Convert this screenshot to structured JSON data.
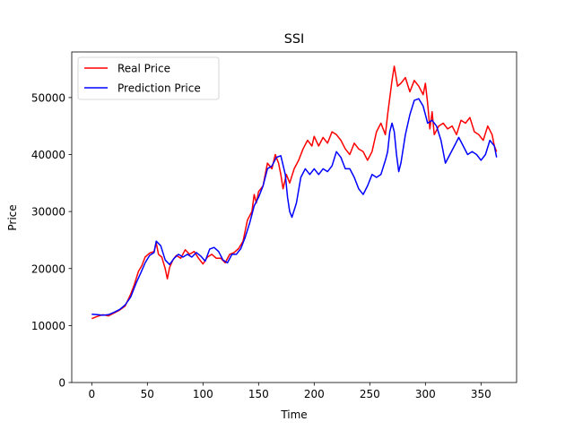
{
  "chart_data": {
    "type": "line",
    "title": "SSI",
    "xlabel": "Time",
    "ylabel": "Price",
    "xlim": [
      -18,
      382
    ],
    "ylim": [
      0,
      58000
    ],
    "xticks": [
      0,
      50,
      100,
      150,
      200,
      250,
      300,
      350
    ],
    "yticks": [
      0,
      10000,
      20000,
      30000,
      40000,
      50000
    ],
    "legend_position": "top-left",
    "grid": false,
    "series": [
      {
        "name": "Real Price",
        "color": "#ff0000",
        "points": [
          [
            0,
            11200
          ],
          [
            5,
            11600
          ],
          [
            10,
            11900
          ],
          [
            15,
            11700
          ],
          [
            20,
            12200
          ],
          [
            25,
            12700
          ],
          [
            30,
            13400
          ],
          [
            35,
            15500
          ],
          [
            38,
            17000
          ],
          [
            42,
            19500
          ],
          [
            45,
            20500
          ],
          [
            48,
            22000
          ],
          [
            52,
            22700
          ],
          [
            56,
            23000
          ],
          [
            58,
            24500
          ],
          [
            60,
            22500
          ],
          [
            63,
            22000
          ],
          [
            66,
            20000
          ],
          [
            68,
            18200
          ],
          [
            70,
            20200
          ],
          [
            73,
            21500
          ],
          [
            76,
            22300
          ],
          [
            80,
            21800
          ],
          [
            84,
            23300
          ],
          [
            88,
            22500
          ],
          [
            92,
            23000
          ],
          [
            96,
            21800
          ],
          [
            100,
            20800
          ],
          [
            104,
            22000
          ],
          [
            108,
            22500
          ],
          [
            112,
            21800
          ],
          [
            116,
            21800
          ],
          [
            120,
            21000
          ],
          [
            124,
            22500
          ],
          [
            128,
            22800
          ],
          [
            132,
            23500
          ],
          [
            136,
            24800
          ],
          [
            140,
            28500
          ],
          [
            144,
            30000
          ],
          [
            146,
            33000
          ],
          [
            148,
            31500
          ],
          [
            150,
            33500
          ],
          [
            154,
            34500
          ],
          [
            158,
            38500
          ],
          [
            162,
            37500
          ],
          [
            165,
            40000
          ],
          [
            168,
            38500
          ],
          [
            170,
            36500
          ],
          [
            172,
            34000
          ],
          [
            175,
            36500
          ],
          [
            178,
            35000
          ],
          [
            182,
            37500
          ],
          [
            186,
            39000
          ],
          [
            190,
            41000
          ],
          [
            194,
            42500
          ],
          [
            198,
            41500
          ],
          [
            200,
            43200
          ],
          [
            204,
            41500
          ],
          [
            208,
            43000
          ],
          [
            212,
            42000
          ],
          [
            216,
            44000
          ],
          [
            220,
            43500
          ],
          [
            224,
            42500
          ],
          [
            228,
            41000
          ],
          [
            232,
            40000
          ],
          [
            236,
            42000
          ],
          [
            240,
            41000
          ],
          [
            244,
            40500
          ],
          [
            248,
            39000
          ],
          [
            252,
            40500
          ],
          [
            256,
            44000
          ],
          [
            260,
            45500
          ],
          [
            264,
            43500
          ],
          [
            266,
            47000
          ],
          [
            270,
            53000
          ],
          [
            272,
            55500
          ],
          [
            275,
            52000
          ],
          [
            278,
            52500
          ],
          [
            282,
            53500
          ],
          [
            286,
            51000
          ],
          [
            290,
            53000
          ],
          [
            294,
            52000
          ],
          [
            298,
            50500
          ],
          [
            300,
            52500
          ],
          [
            302,
            49000
          ],
          [
            304,
            44500
          ],
          [
            306,
            47500
          ],
          [
            308,
            43500
          ],
          [
            312,
            45000
          ],
          [
            316,
            45500
          ],
          [
            320,
            44500
          ],
          [
            324,
            45000
          ],
          [
            328,
            43500
          ],
          [
            332,
            46000
          ],
          [
            336,
            45500
          ],
          [
            340,
            46500
          ],
          [
            344,
            44000
          ],
          [
            348,
            43500
          ],
          [
            352,
            42500
          ],
          [
            356,
            45000
          ],
          [
            360,
            43500
          ],
          [
            362,
            41500
          ],
          [
            364,
            40500
          ]
        ]
      },
      {
        "name": "Prediction Price",
        "color": "#0000ff",
        "points": [
          [
            0,
            12000
          ],
          [
            5,
            11900
          ],
          [
            10,
            11800
          ],
          [
            15,
            11900
          ],
          [
            20,
            12300
          ],
          [
            25,
            12800
          ],
          [
            30,
            13600
          ],
          [
            35,
            15000
          ],
          [
            40,
            17500
          ],
          [
            44,
            19200
          ],
          [
            48,
            21000
          ],
          [
            52,
            22300
          ],
          [
            56,
            22800
          ],
          [
            58,
            24800
          ],
          [
            62,
            24000
          ],
          [
            66,
            21500
          ],
          [
            70,
            20700
          ],
          [
            74,
            21800
          ],
          [
            78,
            22500
          ],
          [
            82,
            22000
          ],
          [
            86,
            22500
          ],
          [
            90,
            22000
          ],
          [
            94,
            22800
          ],
          [
            98,
            22200
          ],
          [
            102,
            21300
          ],
          [
            106,
            23400
          ],
          [
            110,
            23700
          ],
          [
            114,
            23000
          ],
          [
            118,
            21500
          ],
          [
            122,
            21000
          ],
          [
            126,
            22500
          ],
          [
            130,
            22500
          ],
          [
            134,
            23500
          ],
          [
            138,
            25500
          ],
          [
            142,
            28000
          ],
          [
            146,
            31000
          ],
          [
            150,
            32500
          ],
          [
            154,
            34500
          ],
          [
            158,
            37500
          ],
          [
            162,
            38000
          ],
          [
            166,
            39500
          ],
          [
            170,
            39800
          ],
          [
            174,
            36500
          ],
          [
            176,
            32500
          ],
          [
            178,
            30000
          ],
          [
            180,
            29000
          ],
          [
            184,
            31500
          ],
          [
            188,
            36000
          ],
          [
            192,
            37500
          ],
          [
            196,
            36500
          ],
          [
            200,
            37500
          ],
          [
            204,
            36500
          ],
          [
            208,
            37500
          ],
          [
            212,
            37000
          ],
          [
            216,
            38000
          ],
          [
            220,
            40500
          ],
          [
            224,
            39500
          ],
          [
            228,
            37500
          ],
          [
            232,
            37500
          ],
          [
            236,
            36000
          ],
          [
            240,
            34000
          ],
          [
            244,
            33000
          ],
          [
            248,
            34500
          ],
          [
            252,
            36500
          ],
          [
            256,
            36000
          ],
          [
            260,
            36500
          ],
          [
            264,
            39000
          ],
          [
            266,
            40500
          ],
          [
            268,
            44000
          ],
          [
            270,
            45500
          ],
          [
            272,
            44000
          ],
          [
            274,
            40000
          ],
          [
            276,
            37000
          ],
          [
            278,
            38500
          ],
          [
            282,
            43500
          ],
          [
            286,
            47000
          ],
          [
            290,
            49500
          ],
          [
            294,
            49800
          ],
          [
            298,
            48500
          ],
          [
            302,
            45500
          ],
          [
            306,
            46000
          ],
          [
            310,
            45000
          ],
          [
            314,
            42500
          ],
          [
            318,
            38500
          ],
          [
            322,
            40000
          ],
          [
            326,
            41500
          ],
          [
            330,
            43000
          ],
          [
            334,
            41500
          ],
          [
            338,
            40000
          ],
          [
            342,
            40500
          ],
          [
            346,
            40000
          ],
          [
            350,
            39000
          ],
          [
            354,
            40000
          ],
          [
            358,
            42500
          ],
          [
            362,
            41500
          ],
          [
            364,
            39500
          ]
        ]
      }
    ]
  }
}
